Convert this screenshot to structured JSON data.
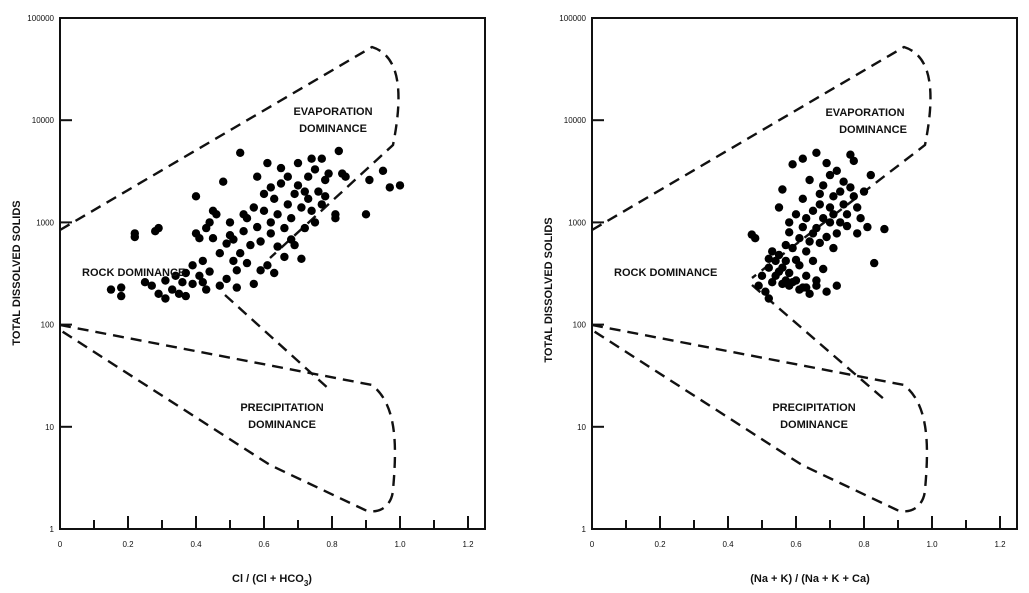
{
  "chart_data": [
    {
      "type": "scatter",
      "xlabel": "Cl / (Cl + HCO",
      "xlabel_sub": "3",
      "xlabel_end": ")",
      "ylabel": "TOTAL DISSOLVED SOLIDS",
      "xlim": [
        0,
        1.25
      ],
      "ylim": [
        1,
        100000
      ],
      "yscale": "log",
      "grid": false,
      "x_ticks": [
        "0",
        "0.2",
        "0.4",
        "0.6",
        "0.8",
        "1.0",
        "1.2"
      ],
      "y_ticks": [
        "1",
        "10",
        "100",
        "1000",
        "10000",
        "100000"
      ],
      "regions": {
        "evaporation": [
          "EVAPORATION",
          "DOMINANCE"
        ],
        "rock": [
          "ROCK DOMINANCE"
        ],
        "precipitation": [
          "PRECIPITATION",
          "DOMINANCE"
        ]
      },
      "points": [
        [
          0.15,
          220
        ],
        [
          0.18,
          190
        ],
        [
          0.18,
          230
        ],
        [
          0.22,
          720
        ],
        [
          0.22,
          780
        ],
        [
          0.25,
          260
        ],
        [
          0.27,
          240
        ],
        [
          0.28,
          820
        ],
        [
          0.29,
          880
        ],
        [
          0.29,
          200
        ],
        [
          0.31,
          180
        ],
        [
          0.31,
          270
        ],
        [
          0.33,
          220
        ],
        [
          0.34,
          300
        ],
        [
          0.35,
          200
        ],
        [
          0.36,
          260
        ],
        [
          0.37,
          320
        ],
        [
          0.37,
          190
        ],
        [
          0.39,
          250
        ],
        [
          0.39,
          380
        ],
        [
          0.4,
          780
        ],
        [
          0.4,
          1800
        ],
        [
          0.41,
          300
        ],
        [
          0.41,
          700
        ],
        [
          0.42,
          260
        ],
        [
          0.42,
          420
        ],
        [
          0.43,
          220
        ],
        [
          0.43,
          880
        ],
        [
          0.44,
          1000
        ],
        [
          0.44,
          330
        ],
        [
          0.45,
          1300
        ],
        [
          0.45,
          700
        ],
        [
          0.46,
          1200
        ],
        [
          0.47,
          240
        ],
        [
          0.47,
          500
        ],
        [
          0.48,
          2500
        ],
        [
          0.49,
          620
        ],
        [
          0.49,
          280
        ],
        [
          0.5,
          750
        ],
        [
          0.5,
          1000
        ],
        [
          0.51,
          680
        ],
        [
          0.51,
          420
        ],
        [
          0.52,
          340
        ],
        [
          0.52,
          230
        ],
        [
          0.53,
          500
        ],
        [
          0.53,
          4800
        ],
        [
          0.54,
          1200
        ],
        [
          0.54,
          820
        ],
        [
          0.55,
          1100
        ],
        [
          0.55,
          400
        ],
        [
          0.56,
          600
        ],
        [
          0.57,
          250
        ],
        [
          0.57,
          1400
        ],
        [
          0.58,
          900
        ],
        [
          0.58,
          2800
        ],
        [
          0.59,
          650
        ],
        [
          0.59,
          340
        ],
        [
          0.6,
          1300
        ],
        [
          0.6,
          1900
        ],
        [
          0.61,
          380
        ],
        [
          0.61,
          3800
        ],
        [
          0.62,
          1000
        ],
        [
          0.62,
          780
        ],
        [
          0.62,
          2200
        ],
        [
          0.63,
          320
        ],
        [
          0.63,
          1700
        ],
        [
          0.64,
          580
        ],
        [
          0.64,
          1200
        ],
        [
          0.65,
          2400
        ],
        [
          0.65,
          3400
        ],
        [
          0.66,
          460
        ],
        [
          0.66,
          880
        ],
        [
          0.67,
          1500
        ],
        [
          0.67,
          2800
        ],
        [
          0.68,
          1100
        ],
        [
          0.68,
          680
        ],
        [
          0.69,
          600
        ],
        [
          0.69,
          1900
        ],
        [
          0.7,
          3800
        ],
        [
          0.7,
          2300
        ],
        [
          0.71,
          440
        ],
        [
          0.71,
          1400
        ],
        [
          0.72,
          880
        ],
        [
          0.72,
          2000
        ],
        [
          0.73,
          2800
        ],
        [
          0.73,
          1700
        ],
        [
          0.74,
          4200
        ],
        [
          0.74,
          1300
        ],
        [
          0.75,
          1000
        ],
        [
          0.75,
          3300
        ],
        [
          0.76,
          2000
        ],
        [
          0.77,
          4200
        ],
        [
          0.77,
          1500
        ],
        [
          0.78,
          2600
        ],
        [
          0.78,
          1800
        ],
        [
          0.79,
          3000
        ],
        [
          0.81,
          1100
        ],
        [
          0.81,
          1200
        ],
        [
          0.82,
          5000
        ],
        [
          0.83,
          3000
        ],
        [
          0.84,
          2800
        ],
        [
          0.9,
          1200
        ],
        [
          0.91,
          2600
        ],
        [
          0.95,
          3200
        ],
        [
          0.97,
          2200
        ],
        [
          1.0,
          2300
        ]
      ]
    },
    {
      "type": "scatter",
      "xlabel": "(Na + K) / (Na + K + Ca)",
      "ylabel": "TOTAL DISSOLVED SOLIDS",
      "xlim": [
        0,
        1.25
      ],
      "ylim": [
        1,
        100000
      ],
      "yscale": "log",
      "grid": false,
      "x_ticks": [
        "0",
        "0.2",
        "0.4",
        "0.6",
        "0.8",
        "1.0",
        "1.2"
      ],
      "y_ticks": [
        "1",
        "10",
        "100",
        "1000",
        "10000",
        "100000"
      ],
      "regions": {
        "evaporation": [
          "EVAPORATION",
          "DOMINANCE"
        ],
        "rock": [
          "ROCK DOMINANCE"
        ],
        "precipitation": [
          "PRECIPITATION",
          "DOMINANCE"
        ]
      },
      "points": [
        [
          0.47,
          760
        ],
        [
          0.48,
          700
        ],
        [
          0.49,
          240
        ],
        [
          0.5,
          300
        ],
        [
          0.51,
          210
        ],
        [
          0.52,
          180
        ],
        [
          0.52,
          360
        ],
        [
          0.53,
          520
        ],
        [
          0.53,
          260
        ],
        [
          0.54,
          420
        ],
        [
          0.54,
          300
        ],
        [
          0.55,
          480
        ],
        [
          0.55,
          330
        ],
        [
          0.55,
          1400
        ],
        [
          0.56,
          360
        ],
        [
          0.56,
          250
        ],
        [
          0.56,
          2100
        ],
        [
          0.57,
          600
        ],
        [
          0.57,
          420
        ],
        [
          0.58,
          800
        ],
        [
          0.58,
          320
        ],
        [
          0.58,
          1000
        ],
        [
          0.59,
          260
        ],
        [
          0.59,
          560
        ],
        [
          0.59,
          3700
        ],
        [
          0.6,
          430
        ],
        [
          0.6,
          1200
        ],
        [
          0.61,
          220
        ],
        [
          0.61,
          700
        ],
        [
          0.61,
          380
        ],
        [
          0.62,
          900
        ],
        [
          0.62,
          230
        ],
        [
          0.62,
          1700
        ],
        [
          0.63,
          520
        ],
        [
          0.63,
          300
        ],
        [
          0.63,
          1100
        ],
        [
          0.64,
          650
        ],
        [
          0.64,
          200
        ],
        [
          0.64,
          2600
        ],
        [
          0.65,
          780
        ],
        [
          0.65,
          1300
        ],
        [
          0.65,
          420
        ],
        [
          0.66,
          880
        ],
        [
          0.66,
          240
        ],
        [
          0.66,
          4800
        ],
        [
          0.67,
          1500
        ],
        [
          0.67,
          630
        ],
        [
          0.67,
          1900
        ],
        [
          0.68,
          350
        ],
        [
          0.68,
          1100
        ],
        [
          0.68,
          2300
        ],
        [
          0.69,
          720
        ],
        [
          0.69,
          210
        ],
        [
          0.69,
          3800
        ],
        [
          0.7,
          1000
        ],
        [
          0.7,
          1400
        ],
        [
          0.7,
          2900
        ],
        [
          0.71,
          560
        ],
        [
          0.71,
          1800
        ],
        [
          0.71,
          1200
        ],
        [
          0.72,
          3200
        ],
        [
          0.72,
          780
        ],
        [
          0.72,
          240
        ],
        [
          0.73,
          2000
        ],
        [
          0.73,
          1000
        ],
        [
          0.74,
          1500
        ],
        [
          0.74,
          2500
        ],
        [
          0.75,
          1200
        ],
        [
          0.75,
          920
        ],
        [
          0.76,
          2200
        ],
        [
          0.76,
          4600
        ],
        [
          0.77,
          1800
        ],
        [
          0.77,
          4000
        ],
        [
          0.78,
          1400
        ],
        [
          0.78,
          780
        ],
        [
          0.79,
          1100
        ],
        [
          0.8,
          2000
        ],
        [
          0.81,
          900
        ],
        [
          0.82,
          2900
        ],
        [
          0.83,
          400
        ],
        [
          0.86,
          860
        ],
        [
          0.58,
          240
        ],
        [
          0.6,
          270
        ],
        [
          0.63,
          230
        ],
        [
          0.66,
          270
        ],
        [
          0.52,
          440
        ],
        [
          0.57,
          270
        ],
        [
          0.62,
          4200
        ]
      ]
    }
  ]
}
